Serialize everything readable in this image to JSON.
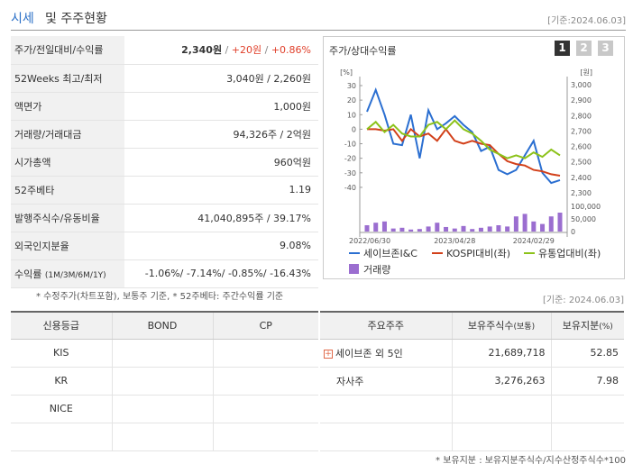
{
  "header": {
    "title_main": "시세",
    "title_rest": "및 주주현황",
    "date": "[기준:2024.06.03]"
  },
  "quote": [
    {
      "label": "주가/전일대비/수익률",
      "v1": "2,340원",
      "sep1": " / ",
      "v2": "+20원",
      "sep2": " / ",
      "v3": "+0.86%"
    },
    {
      "label": "52Weeks 최고/최저",
      "value": "3,040원 / 2,260원"
    },
    {
      "label": "액면가",
      "value": "1,000원"
    },
    {
      "label": "거래량/거래대금",
      "value": "94,326주 / 2억원"
    },
    {
      "label": "시가총액",
      "value": "960억원"
    },
    {
      "label": "52주베타",
      "value": "1.19"
    },
    {
      "label": "발행주식수/유동비율",
      "value": "41,040,895주 / 39.17%"
    },
    {
      "label": "외국인지분율",
      "value": "9.08%"
    },
    {
      "label": "수익률",
      "label_sub": "(1M/3M/6M/1Y)",
      "value": "-1.06%/ -7.14%/ -0.85%/ -16.43%"
    }
  ],
  "quote_note": "* 수정주가(차트포함), 보통주 기준, * 52주베타: 주간수익률 기준",
  "chart_panel": {
    "title": "주가/상대수익률",
    "tabs": [
      "1",
      "2",
      "3"
    ],
    "active_tab": "1"
  },
  "chart_data": {
    "type": "line",
    "left_axis_unit": "[%]",
    "right_axis_unit": "[원]",
    "left_ticks": [
      "30",
      "20",
      "10",
      "0",
      "-10",
      "-20",
      "-30",
      "-40"
    ],
    "right_ticks": [
      "3,000",
      "2,900",
      "2,800",
      "2,700",
      "2,600",
      "2,500",
      "2,400",
      "2,300"
    ],
    "volume_ticks": [
      "100,000",
      "50,000",
      "0"
    ],
    "x_ticks": [
      "2022/06/30",
      "2023/04/28",
      "2024/02/29"
    ],
    "ylim": [
      -45,
      30
    ],
    "volume_max": 100000,
    "series": [
      {
        "name": "세이브존I&C",
        "color": "#2b6fd1",
        "values": [
          12,
          27,
          10,
          -10,
          -11,
          10,
          -20,
          13,
          0,
          4,
          9,
          3,
          -2,
          -15,
          -12,
          -28,
          -31,
          -28,
          -18,
          -8,
          -30,
          -37,
          -35
        ]
      },
      {
        "name": "KOSPI대비(좌)",
        "color": "#d2401a",
        "values": [
          0,
          0,
          -1,
          0,
          -8,
          0,
          -5,
          -3,
          -8,
          0,
          -8,
          -10,
          -8,
          -10,
          -11,
          -17,
          -22,
          -24,
          -25,
          -28,
          -29,
          -31,
          -32
        ]
      },
      {
        "name": "유통업대비(좌)",
        "color": "#8cc21a",
        "values": [
          0,
          5,
          -2,
          3,
          -3,
          -5,
          -5,
          3,
          5,
          0,
          6,
          0,
          -3,
          -8,
          -14,
          -17,
          -20,
          -18,
          -20,
          -16,
          -19,
          -14,
          -18
        ]
      }
    ],
    "volume": {
      "name": "거래량",
      "color": "#9b6ed0",
      "values": [
        25000,
        35000,
        40000,
        12000,
        15000,
        8000,
        10000,
        20000,
        35000,
        18000,
        12000,
        22000,
        10000,
        15000,
        20000,
        25000,
        20000,
        60000,
        70000,
        40000,
        30000,
        60000,
        75000
      ]
    }
  },
  "credit": {
    "headers": [
      "신용등급",
      "BOND",
      "CP"
    ],
    "rows": [
      [
        "KIS",
        "",
        ""
      ],
      [
        "KR",
        "",
        ""
      ],
      [
        "NICE",
        "",
        ""
      ],
      [
        "",
        "",
        ""
      ]
    ]
  },
  "shareholders_date": "[기준: 2024.06.03]",
  "shareholders": {
    "headers": [
      "주요주주",
      "보유주식수",
      "(보통)",
      "보유지분",
      "(%)"
    ],
    "rows": [
      {
        "name": "세이브존 외 5인",
        "shares": "21,689,718",
        "pct": "52.85",
        "expand": "+"
      },
      {
        "name": "자사주",
        "shares": "3,276,263",
        "pct": "7.98"
      }
    ]
  },
  "shareholders_note": "* 보유지분 : 보유지분주식수/지수산정주식수*100"
}
